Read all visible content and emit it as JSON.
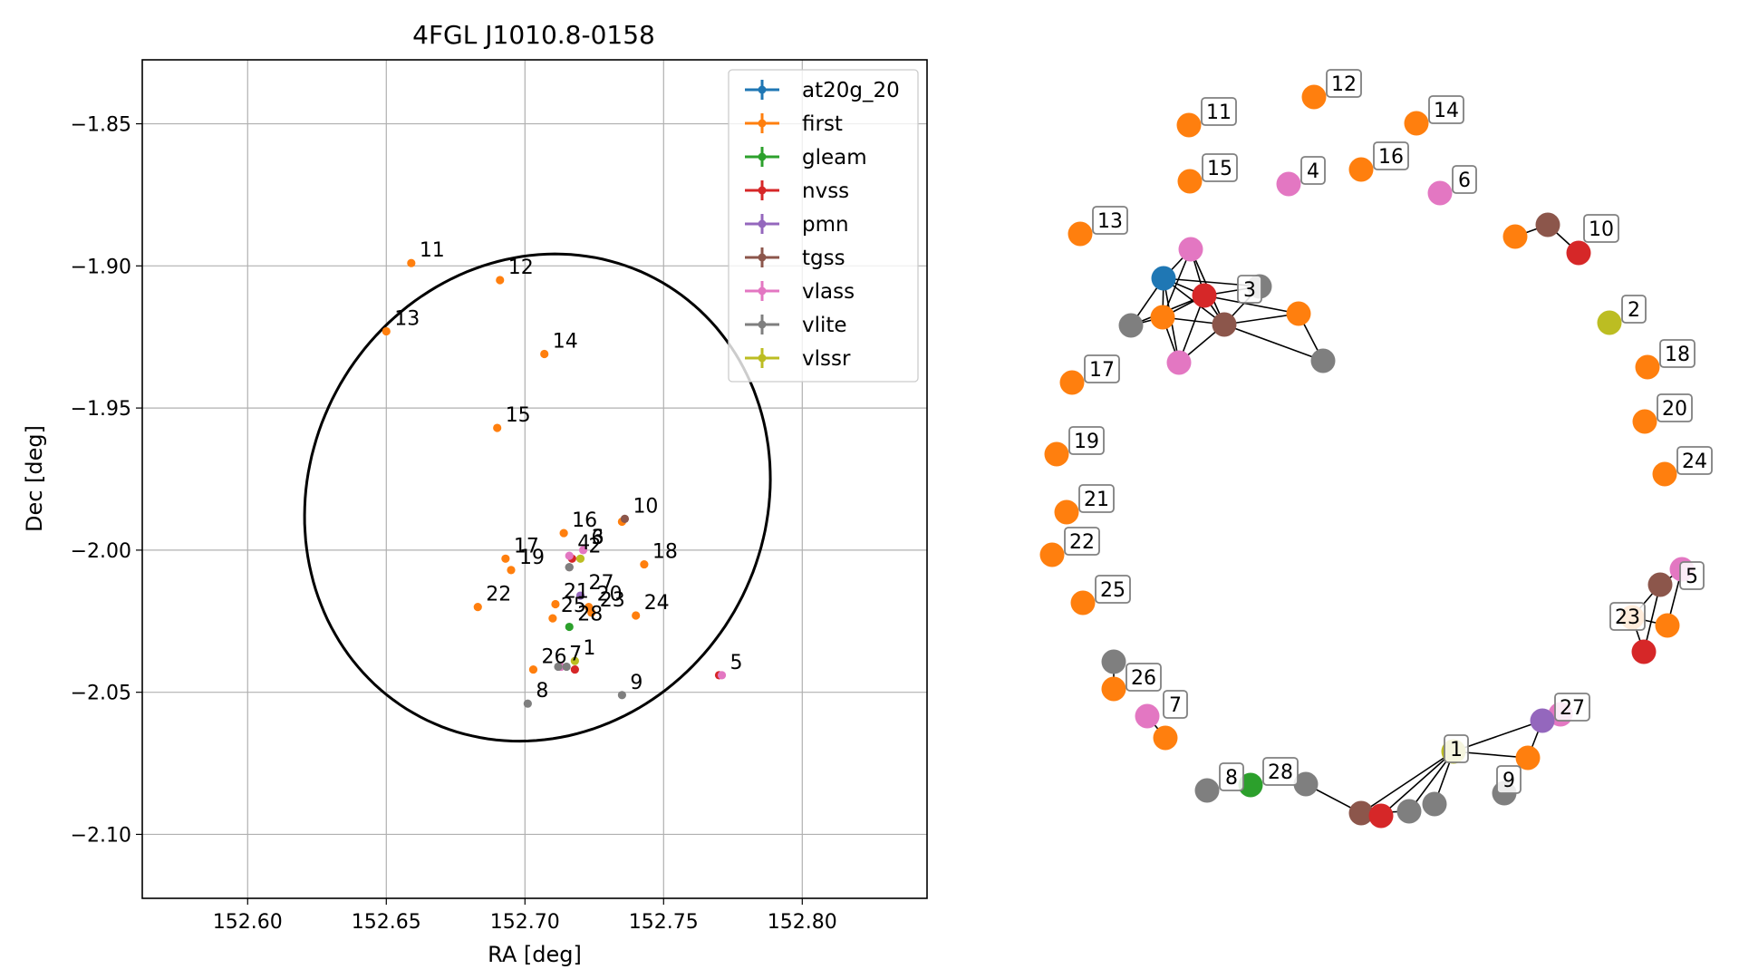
{
  "chart_data": [
    {
      "type": "scatter",
      "title": "4FGL J1010.8-0158",
      "xlabel": "RA [deg]",
      "ylabel": "Dec [deg]",
      "xlim": [
        152.562,
        152.845
      ],
      "ylim": [
        -2.1225,
        -1.8275
      ],
      "xticks": [
        152.6,
        152.65,
        152.7,
        152.75,
        152.8
      ],
      "xtick_labels": [
        "152.60",
        "152.65",
        "152.70",
        "152.75",
        "152.80"
      ],
      "yticks": [
        -1.85,
        -1.9,
        -1.95,
        -2.0,
        -2.05,
        -2.1
      ],
      "ytick_labels": [
        "−1.85",
        "−1.90",
        "−1.95",
        "−2.00",
        "−2.05",
        "−2.10"
      ],
      "grid": true,
      "legend_position": "top-right",
      "ellipse": {
        "center": [
          152.7045,
          -1.9815
        ],
        "ra_vertices": [
          152.6225,
          152.7865
        ],
        "dec_vertices": [
          -2.069,
          -1.894
        ],
        "angle_deg": 30
      },
      "series": [
        {
          "name": "at20g_20",
          "color": "#1f77b4",
          "points": []
        },
        {
          "name": "first",
          "color": "#ff7f0e",
          "points": [
            {
              "x": 152.659,
              "y": -1.899,
              "label": "11"
            },
            {
              "x": 152.691,
              "y": -1.905,
              "label": "12"
            },
            {
              "x": 152.65,
              "y": -1.923,
              "label": "13"
            },
            {
              "x": 152.707,
              "y": -1.931,
              "label": "14"
            },
            {
              "x": 152.69,
              "y": -1.957,
              "label": "15"
            },
            {
              "x": 152.714,
              "y": -1.994,
              "label": "16"
            },
            {
              "x": 152.693,
              "y": -2.003,
              "label": "17"
            },
            {
              "x": 152.743,
              "y": -2.005,
              "label": "18"
            },
            {
              "x": 152.695,
              "y": -2.007,
              "label": "19"
            },
            {
              "x": 152.683,
              "y": -2.02,
              "label": "22"
            },
            {
              "x": 152.711,
              "y": -2.019,
              "label": "21"
            },
            {
              "x": 152.723,
              "y": -2.02,
              "label": "20"
            },
            {
              "x": 152.71,
              "y": -2.024,
              "label": "25"
            },
            {
              "x": 152.724,
              "y": -2.022,
              "label": "23"
            },
            {
              "x": 152.74,
              "y": -2.023,
              "label": "24"
            },
            {
              "x": 152.703,
              "y": -2.042,
              "label": "26"
            },
            {
              "x": 152.735,
              "y": -1.99,
              "label": ""
            }
          ]
        },
        {
          "name": "gleam",
          "color": "#2ca02c",
          "points": [
            {
              "x": 152.716,
              "y": -2.027,
              "label": "28"
            }
          ]
        },
        {
          "name": "nvss",
          "color": "#d62728",
          "points": [
            {
              "x": 152.717,
              "y": -2.003,
              "label": ""
            },
            {
              "x": 152.77,
              "y": -2.044,
              "label": ""
            },
            {
              "x": 152.718,
              "y": -2.042,
              "label": ""
            }
          ]
        },
        {
          "name": "pmn",
          "color": "#9467bd",
          "points": [
            {
              "x": 152.72,
              "y": -2.016,
              "label": "27"
            }
          ]
        },
        {
          "name": "tgss",
          "color": "#8c564b",
          "points": [
            {
              "x": 152.736,
              "y": -1.989,
              "label": "10"
            },
            {
              "x": 152.716,
              "y": -2.006,
              "label": ""
            }
          ]
        },
        {
          "name": "vlass",
          "color": "#e377c2",
          "points": [
            {
              "x": 152.716,
              "y": -2.002,
              "label": "4"
            },
            {
              "x": 152.721,
              "y": -2.0,
              "label": "6"
            },
            {
              "x": 152.771,
              "y": -2.044,
              "label": "5"
            },
            {
              "x": 152.713,
              "y": -2.041,
              "label": "7"
            }
          ]
        },
        {
          "name": "vlite",
          "color": "#7f7f7f",
          "points": [
            {
              "x": 152.716,
              "y": -2.006,
              "label": ""
            },
            {
              "x": 152.701,
              "y": -2.054,
              "label": "8"
            },
            {
              "x": 152.735,
              "y": -2.051,
              "label": "9"
            },
            {
              "x": 152.712,
              "y": -2.041,
              "label": ""
            },
            {
              "x": 152.715,
              "y": -2.041,
              "label": ""
            }
          ]
        },
        {
          "name": "vlssr",
          "color": "#bcbd22",
          "points": [
            {
              "x": 152.72,
              "y": -2.003,
              "label": "2"
            },
            {
              "x": 152.718,
              "y": -2.039,
              "label": "1"
            }
          ]
        }
      ],
      "extra_labels": [
        {
          "text": "3",
          "x": 152.721,
          "y": -2.0
        }
      ]
    },
    {
      "type": "network",
      "nodes": [
        {
          "id": "11",
          "color": "#ff7f0e",
          "label": "11"
        },
        {
          "id": "12",
          "color": "#ff7f0e",
          "label": "12"
        },
        {
          "id": "14",
          "color": "#ff7f0e",
          "label": "14"
        },
        {
          "id": "15",
          "color": "#ff7f0e",
          "label": "15"
        },
        {
          "id": "4",
          "color": "#e377c2",
          "label": "4"
        },
        {
          "id": "16",
          "color": "#ff7f0e",
          "label": "16"
        },
        {
          "id": "6",
          "color": "#e377c2",
          "label": "6"
        },
        {
          "id": "13",
          "color": "#ff7f0e",
          "label": "13"
        },
        {
          "id": "10a",
          "color": "#ff7f0e",
          "label": ""
        },
        {
          "id": "10b",
          "color": "#8c564b",
          "label": ""
        },
        {
          "id": "10c",
          "color": "#d62728",
          "label": "10"
        },
        {
          "id": "c_vlass",
          "color": "#e377c2",
          "label": ""
        },
        {
          "id": "c_at20",
          "color": "#1f77b4",
          "label": ""
        },
        {
          "id": "c_nvss",
          "color": "#d62728",
          "label": ""
        },
        {
          "id": "c_vlite1",
          "color": "#7f7f7f",
          "label": "3"
        },
        {
          "id": "c_vlite2",
          "color": "#7f7f7f",
          "label": ""
        },
        {
          "id": "c_first1",
          "color": "#ff7f0e",
          "label": ""
        },
        {
          "id": "c_tgss",
          "color": "#8c564b",
          "label": ""
        },
        {
          "id": "c_first2",
          "color": "#ff7f0e",
          "label": ""
        },
        {
          "id": "c_vlass2",
          "color": "#e377c2",
          "label": ""
        },
        {
          "id": "c_vlite3",
          "color": "#7f7f7f",
          "label": ""
        },
        {
          "id": "2",
          "color": "#bcbd22",
          "label": "2"
        },
        {
          "id": "18",
          "color": "#ff7f0e",
          "label": "18"
        },
        {
          "id": "17",
          "color": "#ff7f0e",
          "label": "17"
        },
        {
          "id": "19",
          "color": "#ff7f0e",
          "label": "19"
        },
        {
          "id": "20",
          "color": "#ff7f0e",
          "label": "20"
        },
        {
          "id": "24",
          "color": "#ff7f0e",
          "label": "24"
        },
        {
          "id": "21",
          "color": "#ff7f0e",
          "label": "21"
        },
        {
          "id": "22",
          "color": "#ff7f0e",
          "label": "22"
        },
        {
          "id": "25",
          "color": "#ff7f0e",
          "label": "25"
        },
        {
          "id": "r_vlass",
          "color": "#e377c2",
          "label": "5"
        },
        {
          "id": "r_tgss",
          "color": "#8c564b",
          "label": ""
        },
        {
          "id": "r_first1",
          "color": "#ff7f0e",
          "label": "23"
        },
        {
          "id": "r_first2",
          "color": "#ff7f0e",
          "label": ""
        },
        {
          "id": "r_nvss",
          "color": "#d62728",
          "label": ""
        },
        {
          "id": "26v",
          "color": "#7f7f7f",
          "label": ""
        },
        {
          "id": "26",
          "color": "#ff7f0e",
          "label": "26"
        },
        {
          "id": "7",
          "color": "#e377c2",
          "label": "7"
        },
        {
          "id": "7f",
          "color": "#ff7f0e",
          "label": ""
        },
        {
          "id": "27v",
          "color": "#e377c2",
          "label": ""
        },
        {
          "id": "27",
          "color": "#9467bd",
          "label": "27"
        },
        {
          "id": "b_first",
          "color": "#ff7f0e",
          "label": ""
        },
        {
          "id": "1",
          "color": "#bcbd22",
          "label": "1"
        },
        {
          "id": "9",
          "color": "#7f7f7f",
          "label": "9"
        },
        {
          "id": "8",
          "color": "#7f7f7f",
          "label": "8"
        },
        {
          "id": "28",
          "color": "#2ca02c",
          "label": "28"
        },
        {
          "id": "b_vlite1",
          "color": "#7f7f7f",
          "label": ""
        },
        {
          "id": "b_tgss",
          "color": "#8c564b",
          "label": ""
        },
        {
          "id": "b_nvss",
          "color": "#d62728",
          "label": ""
        },
        {
          "id": "b_vlite2",
          "color": "#7f7f7f",
          "label": ""
        },
        {
          "id": "b_vlite3",
          "color": "#7f7f7f",
          "label": ""
        }
      ],
      "edges": [
        [
          "10a",
          "10b"
        ],
        [
          "10b",
          "10c"
        ],
        [
          "c_at20",
          "c_vlass"
        ],
        [
          "c_at20",
          "c_nvss"
        ],
        [
          "c_at20",
          "c_first1"
        ],
        [
          "c_at20",
          "c_tgss"
        ],
        [
          "c_at20",
          "c_vlite2"
        ],
        [
          "c_at20",
          "c_vlass2"
        ],
        [
          "c_at20",
          "c_vlite1"
        ],
        [
          "c_vlass",
          "c_nvss"
        ],
        [
          "c_vlass",
          "c_tgss"
        ],
        [
          "c_vlass",
          "c_first1"
        ],
        [
          "c_nvss",
          "c_vlite1"
        ],
        [
          "c_nvss",
          "c_tgss"
        ],
        [
          "c_nvss",
          "c_first1"
        ],
        [
          "c_nvss",
          "c_vlass2"
        ],
        [
          "c_nvss",
          "c_first2"
        ],
        [
          "c_nvss",
          "c_vlite2"
        ],
        [
          "c_tgss",
          "c_vlite1"
        ],
        [
          "c_tgss",
          "c_first2"
        ],
        [
          "c_tgss",
          "c_vlite3"
        ],
        [
          "c_tgss",
          "c_first1"
        ],
        [
          "c_tgss",
          "c_vlass2"
        ],
        [
          "c_first1",
          "c_vlass2"
        ],
        [
          "c_first1",
          "c_vlite2"
        ],
        [
          "c_first2",
          "c_vlite3"
        ],
        [
          "r_vlass",
          "r_tgss"
        ],
        [
          "r_tgss",
          "r_first1"
        ],
        [
          "r_tgss",
          "r_nvss"
        ],
        [
          "r_first1",
          "r_first2"
        ],
        [
          "r_first1",
          "r_nvss"
        ],
        [
          "r_vlass",
          "r_first2"
        ],
        [
          "26v",
          "26"
        ],
        [
          "7",
          "7f"
        ],
        [
          "27v",
          "27"
        ],
        [
          "27",
          "b_first"
        ],
        [
          "1",
          "27"
        ],
        [
          "1",
          "b_first"
        ],
        [
          "1",
          "b_tgss"
        ],
        [
          "1",
          "b_nvss"
        ],
        [
          "1",
          "b_vlite2"
        ],
        [
          "1",
          "b_vlite3"
        ],
        [
          "b_vlite1",
          "b_tgss"
        ],
        [
          "b_tgss",
          "b_nvss"
        ],
        [
          "b_tgss",
          "b_vlite2"
        ]
      ]
    }
  ]
}
